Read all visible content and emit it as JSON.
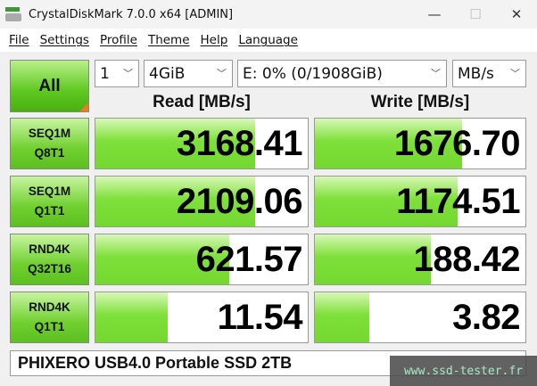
{
  "window": {
    "title": "CrystalDiskMark 7.0.0 x64 [ADMIN]",
    "minimize": "—",
    "maximize": "☐",
    "close": "✕"
  },
  "menu": [
    "File",
    "Settings",
    "Profile",
    "Theme",
    "Help",
    "Language"
  ],
  "controls": {
    "all_label": "All",
    "count": "1",
    "size": "4GiB",
    "drive": "E: 0% (0/1908GiB)",
    "unit": "MB/s"
  },
  "headers": {
    "read": "Read [MB/s]",
    "write": "Write [MB/s]"
  },
  "rows": [
    {
      "l1": "SEQ1M",
      "l2": "Q8T1",
      "read": "3168.41",
      "write": "1676.70",
      "read_fill": 0.75,
      "write_fill": 0.7
    },
    {
      "l1": "SEQ1M",
      "l2": "Q1T1",
      "read": "2109.06",
      "write": "1174.51",
      "read_fill": 0.75,
      "write_fill": 0.68
    },
    {
      "l1": "RND4K",
      "l2": "Q32T16",
      "read": "621.57",
      "write": "188.42",
      "read_fill": 0.63,
      "write_fill": 0.55
    },
    {
      "l1": "RND4K",
      "l2": "Q1T1",
      "read": "11.54",
      "write": "3.82",
      "read_fill": 0.34,
      "write_fill": 0.26
    }
  ],
  "drive_name": "PHIXERO USB4.0 Portable SSD 2TB",
  "watermark": "www.ssd-tester.fr",
  "colors": {
    "bar": "#74d830",
    "corner": "#f07820"
  }
}
